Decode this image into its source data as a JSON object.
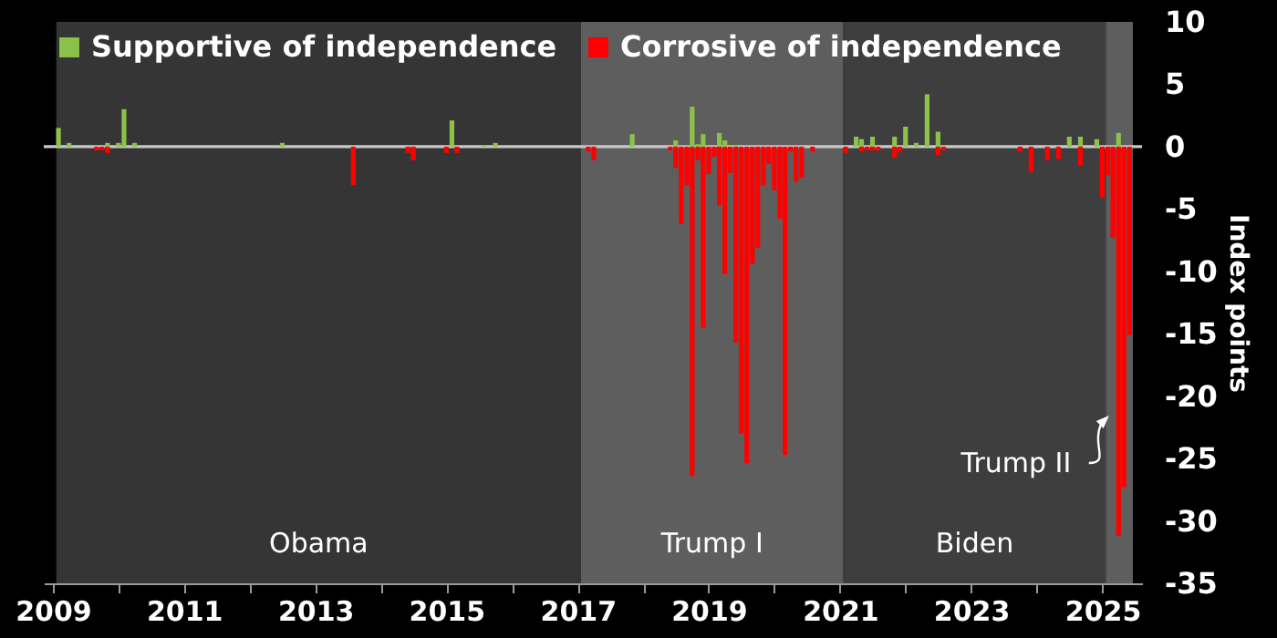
{
  "chart_data": {
    "type": "bar",
    "ylabel": "Index points",
    "xlim": [
      "2009-01",
      "2025-06-20"
    ],
    "xticks": [
      {
        "value": "2009",
        "label": "2009"
      },
      {
        "value": "2010",
        "label": null
      },
      {
        "value": "2011",
        "label": "2011"
      },
      {
        "value": "2012",
        "label": null
      },
      {
        "value": "2013",
        "label": "2013"
      },
      {
        "value": "2014",
        "label": null
      },
      {
        "value": "2015",
        "label": "2015"
      },
      {
        "value": "2016",
        "label": null
      },
      {
        "value": "2017",
        "label": "2017"
      },
      {
        "value": "2018",
        "label": null
      },
      {
        "value": "2019",
        "label": "2019"
      },
      {
        "value": "2020",
        "label": null
      },
      {
        "value": "2021",
        "label": "2021"
      },
      {
        "value": "2022",
        "label": null
      },
      {
        "value": "2023",
        "label": "2023"
      },
      {
        "value": "2024",
        "label": null
      },
      {
        "value": "2025",
        "label": "2025"
      }
    ],
    "ylim": [
      -35,
      10
    ],
    "yticks": [
      -35,
      -30,
      -25,
      -20,
      -15,
      -10,
      -5,
      0,
      5,
      10
    ],
    "legend": "top left",
    "grid": false,
    "bands": [
      {
        "axis": "x",
        "from": "2009-01-20",
        "to": "2017-01-20",
        "label": "Obama",
        "color": "#353535"
      },
      {
        "axis": "x",
        "from": "2017-01-20",
        "to": "2021-01-20",
        "label": "Trump I",
        "color": "#5e5e5e"
      },
      {
        "axis": "x",
        "from": "2021-01-20",
        "to": "2025-01-20",
        "label": "Biden",
        "color": "#3e3e3e"
      },
      {
        "axis": "x",
        "from": "2025-01-20",
        "to": "2025-06-20",
        "label": "Trump II",
        "color": "#5e5e5e"
      }
    ],
    "ref_lines": [
      {
        "axis": "y",
        "value": 0,
        "color": "#c8c8c8"
      }
    ],
    "series": [
      {
        "name": "Supportive of independence",
        "color": "#8bc34a",
        "x": [
          "2009-02",
          "2009-04",
          "2009-11",
          "2010-01",
          "2010-02",
          "2010-04",
          "2012-07",
          "2015-02",
          "2015-08",
          "2015-10",
          "2017-11",
          "2018-07",
          "2018-10",
          "2018-11",
          "2018-12",
          "2019-03",
          "2019-04",
          "2019-06",
          "2021-04",
          "2021-05",
          "2021-07",
          "2021-11",
          "2022-01",
          "2022-03",
          "2022-05",
          "2022-07",
          "2024-07",
          "2024-09",
          "2024-12",
          "2025-04"
        ],
        "values": [
          1.5,
          0.3,
          0.3,
          0.3,
          3.0,
          0.3,
          0.3,
          2.1,
          0.1,
          0.3,
          1.0,
          0.5,
          3.2,
          0.2,
          1.0,
          1.1,
          0.5,
          0.1,
          0.8,
          0.6,
          0.8,
          0.8,
          1.6,
          0.3,
          4.2,
          1.2,
          0.8,
          0.8,
          0.6,
          1.1
        ]
      },
      {
        "name": "Corrosive of independence",
        "color": "#ff0000",
        "x": [
          "2009-09",
          "2009-10",
          "2009-11",
          "2013-08",
          "2014-06",
          "2014-07",
          "2015-01",
          "2015-03",
          "2017-03",
          "2017-04",
          "2018-06",
          "2018-07",
          "2018-08",
          "2018-09",
          "2018-10",
          "2018-11",
          "2018-12",
          "2019-01",
          "2019-02",
          "2019-03",
          "2019-04",
          "2019-05",
          "2019-06",
          "2019-07",
          "2019-08",
          "2019-09",
          "2019-10",
          "2019-11",
          "2019-12",
          "2020-01",
          "2020-02",
          "2020-03",
          "2020-04",
          "2020-05",
          "2020-06",
          "2020-08",
          "2021-02",
          "2021-05",
          "2021-06",
          "2021-07",
          "2021-08",
          "2021-11",
          "2021-12",
          "2022-07",
          "2022-08",
          "2023-10",
          "2023-12",
          "2024-03",
          "2024-05",
          "2024-09",
          "2025-01",
          "2025-02",
          "2025-03",
          "2025-04",
          "2025-05",
          "2025-06"
        ],
        "values": [
          -0.3,
          -0.3,
          -0.5,
          -3.1,
          -0.5,
          -1.1,
          -0.5,
          -0.5,
          -0.4,
          -1.1,
          -0.3,
          -1.7,
          -6.2,
          -3.1,
          -26.4,
          -1.1,
          -14.5,
          -2.2,
          -0.8,
          -4.7,
          -10.2,
          -2.1,
          -15.7,
          -23.0,
          -25.4,
          -9.4,
          -8.1,
          -3.1,
          -1.4,
          -3.5,
          -5.8,
          -24.7,
          -0.4,
          -2.8,
          -2.5,
          -0.4,
          -0.5,
          -0.4,
          -0.3,
          -0.3,
          -0.3,
          -0.9,
          -0.4,
          -0.7,
          -0.3,
          -0.4,
          -2.0,
          -1.1,
          -1.0,
          -1.5,
          -4.1,
          -2.3,
          -7.3,
          -31.2,
          -27.3,
          -15.1
        ]
      }
    ]
  }
}
